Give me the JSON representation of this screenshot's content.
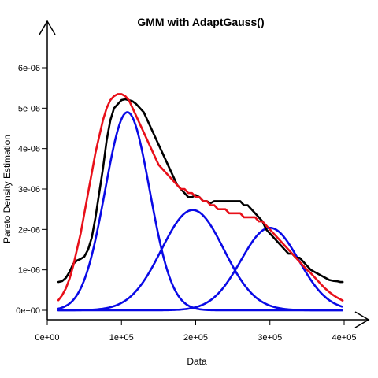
{
  "chart_data": {
    "type": "line",
    "title": "GMM with AdaptGauss()",
    "xlabel": "Data",
    "ylabel": "Pareto Density Estimation",
    "xlim": [
      0,
      400000
    ],
    "ylim": [
      0,
      6.5e-06
    ],
    "x_ticks": [
      {
        "value": 0,
        "label": "0e+00"
      },
      {
        "value": 100000,
        "label": "1e+05"
      },
      {
        "value": 200000,
        "label": "2e+05"
      },
      {
        "value": 300000,
        "label": "3e+05"
      },
      {
        "value": 400000,
        "label": "4e+05"
      }
    ],
    "y_ticks": [
      {
        "value": 0,
        "label": "0e+00"
      },
      {
        "value": 1e-06,
        "label": "1e-06"
      },
      {
        "value": 2e-06,
        "label": "2e-06"
      },
      {
        "value": 3e-06,
        "label": "3e-06"
      },
      {
        "value": 4e-06,
        "label": "4e-06"
      },
      {
        "value": 5e-06,
        "label": "5e-06"
      },
      {
        "value": 6e-06,
        "label": "6e-06"
      }
    ],
    "grid": false,
    "legend": "none",
    "x_range": [
      15000,
      398000
    ],
    "series": [
      {
        "role": "pareto-density",
        "color": "#000000",
        "points": [
          [
            15000,
            7e-07
          ],
          [
            20000,
            7.2e-07
          ],
          [
            25000,
            8e-07
          ],
          [
            30000,
            9.5e-07
          ],
          [
            35000,
            1.15e-06
          ],
          [
            40000,
            1.23e-06
          ],
          [
            45000,
            1.27e-06
          ],
          [
            50000,
            1.33e-06
          ],
          [
            55000,
            1.5e-06
          ],
          [
            60000,
            1.8e-06
          ],
          [
            65000,
            2.3e-06
          ],
          [
            70000,
            2.9e-06
          ],
          [
            75000,
            3.5e-06
          ],
          [
            80000,
            4.2e-06
          ],
          [
            85000,
            4.7e-06
          ],
          [
            90000,
            5e-06
          ],
          [
            95000,
            5.1e-06
          ],
          [
            100000,
            5.2e-06
          ],
          [
            105000,
            5.22e-06
          ],
          [
            110000,
            5.2e-06
          ],
          [
            115000,
            5.17e-06
          ],
          [
            120000,
            5.1e-06
          ],
          [
            125000,
            5e-06
          ],
          [
            130000,
            4.9e-06
          ],
          [
            135000,
            4.7e-06
          ],
          [
            140000,
            4.5e-06
          ],
          [
            145000,
            4.3e-06
          ],
          [
            150000,
            4.1e-06
          ],
          [
            155000,
            3.9e-06
          ],
          [
            160000,
            3.7e-06
          ],
          [
            165000,
            3.5e-06
          ],
          [
            170000,
            3.3e-06
          ],
          [
            175000,
            3.1e-06
          ],
          [
            180000,
            3e-06
          ],
          [
            185000,
            2.9e-06
          ],
          [
            190000,
            2.8e-06
          ],
          [
            195000,
            2.8e-06
          ],
          [
            200000,
            2.85e-06
          ],
          [
            205000,
            2.8e-06
          ],
          [
            210000,
            2.7e-06
          ],
          [
            215000,
            2.7e-06
          ],
          [
            220000,
            2.65e-06
          ],
          [
            225000,
            2.7e-06
          ],
          [
            230000,
            2.7e-06
          ],
          [
            235000,
            2.7e-06
          ],
          [
            240000,
            2.7e-06
          ],
          [
            245000,
            2.7e-06
          ],
          [
            250000,
            2.7e-06
          ],
          [
            255000,
            2.7e-06
          ],
          [
            260000,
            2.7e-06
          ],
          [
            265000,
            2.6e-06
          ],
          [
            270000,
            2.6e-06
          ],
          [
            275000,
            2.5e-06
          ],
          [
            280000,
            2.4e-06
          ],
          [
            285000,
            2.3e-06
          ],
          [
            290000,
            2.2e-06
          ],
          [
            295000,
            2e-06
          ],
          [
            300000,
            1.9e-06
          ],
          [
            305000,
            1.8e-06
          ],
          [
            310000,
            1.7e-06
          ],
          [
            315000,
            1.6e-06
          ],
          [
            320000,
            1.5e-06
          ],
          [
            325000,
            1.4e-06
          ],
          [
            330000,
            1.4e-06
          ],
          [
            335000,
            1.3e-06
          ],
          [
            340000,
            1.3e-06
          ],
          [
            345000,
            1.2e-06
          ],
          [
            350000,
            1.1e-06
          ],
          [
            355000,
            1e-06
          ],
          [
            360000,
            9.5e-07
          ],
          [
            365000,
            9e-07
          ],
          [
            370000,
            8.5e-07
          ],
          [
            375000,
            8e-07
          ],
          [
            380000,
            7.5e-07
          ],
          [
            385000,
            7.3e-07
          ],
          [
            390000,
            7.2e-07
          ],
          [
            395000,
            7e-07
          ],
          [
            398000,
            7e-07
          ]
        ]
      },
      {
        "role": "gmm-total",
        "color": "#e8101a",
        "points": [
          [
            15000,
            2.5e-07
          ],
          [
            20000,
            3.7e-07
          ],
          [
            25000,
            5.4e-07
          ],
          [
            30000,
            7.8e-07
          ],
          [
            35000,
            1.1e-06
          ],
          [
            40000,
            1.5e-06
          ],
          [
            45000,
            1.9e-06
          ],
          [
            50000,
            2.4e-06
          ],
          [
            55000,
            2.9e-06
          ],
          [
            60000,
            3.4e-06
          ],
          [
            65000,
            3.9e-06
          ],
          [
            70000,
            4.3e-06
          ],
          [
            75000,
            4.7e-06
          ],
          [
            80000,
            5e-06
          ],
          [
            85000,
            5.2e-06
          ],
          [
            90000,
            5.3e-06
          ],
          [
            95000,
            5.35e-06
          ],
          [
            100000,
            5.35e-06
          ],
          [
            105000,
            5.3e-06
          ],
          [
            110000,
            5.2e-06
          ],
          [
            115000,
            5e-06
          ],
          [
            120000,
            4.8e-06
          ],
          [
            125000,
            4.6e-06
          ],
          [
            130000,
            4.4e-06
          ],
          [
            135000,
            4.2e-06
          ],
          [
            140000,
            4e-06
          ],
          [
            145000,
            3.8e-06
          ],
          [
            150000,
            3.6e-06
          ],
          [
            155000,
            3.5e-06
          ],
          [
            160000,
            3.4e-06
          ],
          [
            165000,
            3.3e-06
          ],
          [
            170000,
            3.2e-06
          ],
          [
            175000,
            3.1e-06
          ],
          [
            180000,
            3e-06
          ],
          [
            185000,
            3e-06
          ],
          [
            190000,
            2.9e-06
          ],
          [
            195000,
            2.9e-06
          ],
          [
            200000,
            2.8e-06
          ],
          [
            205000,
            2.8e-06
          ],
          [
            210000,
            2.7e-06
          ],
          [
            215000,
            2.7e-06
          ],
          [
            220000,
            2.6e-06
          ],
          [
            225000,
            2.6e-06
          ],
          [
            230000,
            2.5e-06
          ],
          [
            235000,
            2.5e-06
          ],
          [
            240000,
            2.5e-06
          ],
          [
            245000,
            2.4e-06
          ],
          [
            250000,
            2.4e-06
          ],
          [
            255000,
            2.4e-06
          ],
          [
            260000,
            2.4e-06
          ],
          [
            265000,
            2.3e-06
          ],
          [
            270000,
            2.3e-06
          ],
          [
            275000,
            2.3e-06
          ],
          [
            280000,
            2.3e-06
          ],
          [
            285000,
            2.2e-06
          ],
          [
            290000,
            2.2e-06
          ],
          [
            295000,
            2.1e-06
          ],
          [
            300000,
            2e-06
          ],
          [
            305000,
            1.9e-06
          ],
          [
            310000,
            1.8e-06
          ],
          [
            315000,
            1.7e-06
          ],
          [
            320000,
            1.6e-06
          ],
          [
            325000,
            1.5e-06
          ],
          [
            330000,
            1.4e-06
          ],
          [
            335000,
            1.3e-06
          ],
          [
            340000,
            1.2e-06
          ],
          [
            345000,
            1.1e-06
          ],
          [
            350000,
            1e-06
          ],
          [
            355000,
            9.2e-07
          ],
          [
            360000,
            8.2e-07
          ],
          [
            365000,
            7.2e-07
          ],
          [
            370000,
            6.2e-07
          ],
          [
            375000,
            5.3e-07
          ],
          [
            380000,
            4.5e-07
          ],
          [
            385000,
            3.8e-07
          ],
          [
            390000,
            3.2e-07
          ],
          [
            395000,
            2.7e-07
          ],
          [
            398000,
            2.4e-07
          ]
        ]
      },
      {
        "role": "component-1",
        "color": "#0a0ae6",
        "mean": 108000,
        "sd": 30000,
        "peak": 4.9e-06
      },
      {
        "role": "component-2",
        "color": "#0a0ae6",
        "mean": 196000,
        "sd": 42000,
        "peak": 2.48e-06
      },
      {
        "role": "component-3",
        "color": "#0a0ae6",
        "mean": 300000,
        "sd": 39000,
        "peak": 2.04e-06
      }
    ]
  }
}
